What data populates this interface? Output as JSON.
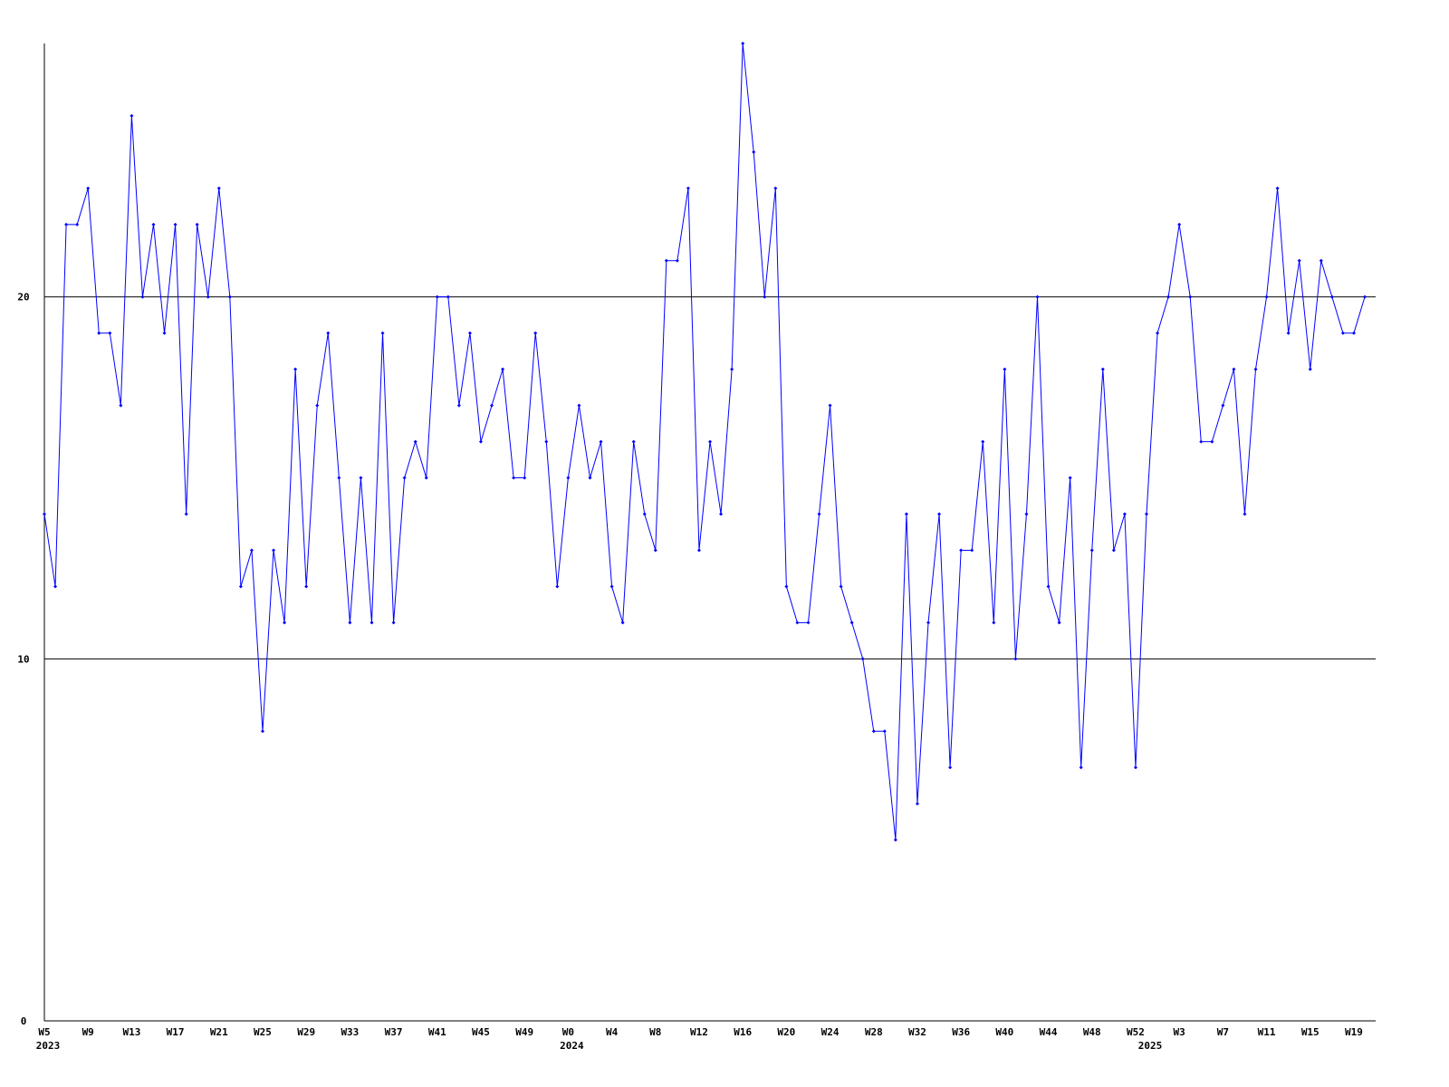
{
  "chart_data": {
    "type": "line",
    "color": "#0000ff",
    "grid": true,
    "ylim": [
      0,
      27
    ],
    "yticks": [
      0,
      10,
      20
    ],
    "categories": [
      "W5",
      null,
      null,
      null,
      "W9",
      null,
      null,
      null,
      "W13",
      null,
      null,
      null,
      "W17",
      null,
      null,
      null,
      "W21",
      null,
      null,
      null,
      "W25",
      null,
      null,
      null,
      "W29",
      null,
      null,
      null,
      "W33",
      null,
      null,
      null,
      "W37",
      null,
      null,
      null,
      "W41",
      null,
      null,
      null,
      "W45",
      null,
      null,
      null,
      "W49",
      null,
      null,
      null,
      "W0",
      null,
      null,
      null,
      "W4",
      null,
      null,
      null,
      "W8",
      null,
      null,
      null,
      "W12",
      null,
      null,
      null,
      "W16",
      null,
      null,
      null,
      "W20",
      null,
      null,
      null,
      "W24",
      null,
      null,
      null,
      "W28",
      null,
      null,
      null,
      "W32",
      null,
      null,
      null,
      "W36",
      null,
      null,
      null,
      "W40",
      null,
      null,
      null,
      "W44",
      null,
      null,
      null,
      "W48",
      null,
      null,
      null,
      "W52",
      null,
      null,
      null,
      "W3",
      null,
      null,
      null,
      "W7",
      null,
      null,
      null,
      "W11",
      null,
      null,
      null,
      "W15",
      null,
      null,
      null,
      "W19",
      null
    ],
    "category_years": [
      "2023",
      null,
      null,
      null,
      null,
      null,
      null,
      null,
      null,
      null,
      null,
      null,
      null,
      null,
      null,
      null,
      null,
      null,
      null,
      null,
      null,
      null,
      null,
      null,
      null,
      null,
      null,
      null,
      null,
      null,
      null,
      null,
      null,
      null,
      null,
      null,
      null,
      null,
      null,
      null,
      null,
      null,
      null,
      null,
      null,
      null,
      null,
      null,
      "2024",
      null,
      null,
      null,
      null,
      null,
      null,
      null,
      null,
      null,
      null,
      null,
      null,
      null,
      null,
      null,
      null,
      null,
      null,
      null,
      null,
      null,
      null,
      null,
      null,
      null,
      null,
      null,
      null,
      null,
      null,
      null,
      null,
      null,
      null,
      null,
      null,
      null,
      null,
      null,
      null,
      null,
      null,
      null,
      null,
      null,
      null,
      null,
      null,
      null,
      null,
      null,
      null,
      "2025",
      null,
      null,
      null,
      null,
      null,
      null,
      null,
      null,
      null,
      null,
      null,
      null,
      null,
      null,
      null,
      null,
      null,
      null,
      null,
      null
    ],
    "values": [
      14,
      12,
      22,
      22,
      23,
      19,
      19,
      17,
      25,
      20,
      22,
      19,
      22,
      14,
      22,
      20,
      23,
      20,
      12,
      13,
      8,
      13,
      11,
      18,
      12,
      17,
      19,
      15,
      11,
      15,
      11,
      19,
      11,
      15,
      16,
      15,
      20,
      20,
      17,
      19,
      16,
      17,
      18,
      15,
      15,
      19,
      16,
      12,
      15,
      17,
      15,
      16,
      12,
      11,
      16,
      14,
      13,
      21,
      21,
      23,
      13,
      16,
      14,
      18,
      27,
      24,
      20,
      23,
      12,
      11,
      11,
      14,
      17,
      12,
      11,
      10,
      8,
      8,
      5,
      14,
      6,
      11,
      14,
      7,
      13,
      13,
      16,
      11,
      18,
      10,
      14,
      20,
      12,
      11,
      15,
      7,
      13,
      18,
      13,
      14,
      7,
      14,
      19,
      20,
      22,
      20,
      16,
      16,
      17,
      18,
      14,
      18,
      20,
      23,
      19,
      21,
      18,
      21,
      20,
      19,
      19,
      20
    ]
  }
}
